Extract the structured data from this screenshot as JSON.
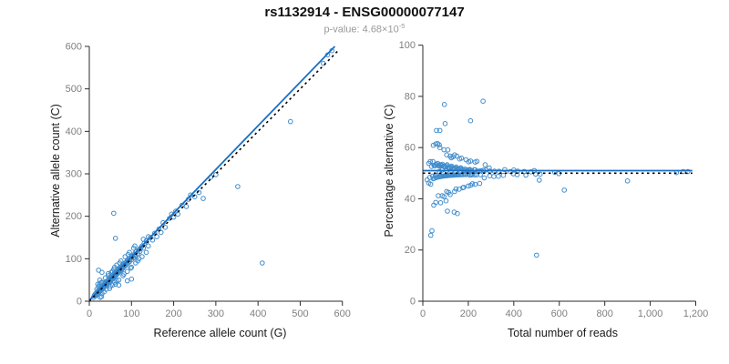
{
  "header": {
    "title": "rs1132914 - ENSG00000077147",
    "pvalue_label": "p-value: ",
    "pvalue_base": "4.68×10",
    "pvalue_exponent": "-5"
  },
  "allele_counts": [
    [
      10,
      9
    ],
    [
      12,
      14
    ],
    [
      14,
      12
    ],
    [
      15,
      18
    ],
    [
      16,
      15
    ],
    [
      18,
      20
    ],
    [
      19,
      16
    ],
    [
      20,
      24
    ],
    [
      22,
      21
    ],
    [
      23,
      26
    ],
    [
      24,
      22
    ],
    [
      25,
      28
    ],
    [
      26,
      24
    ],
    [
      27,
      31
    ],
    [
      28,
      27
    ],
    [
      29,
      33
    ],
    [
      30,
      28
    ],
    [
      30,
      35
    ],
    [
      31,
      30
    ],
    [
      32,
      36
    ],
    [
      33,
      31
    ],
    [
      34,
      38
    ],
    [
      35,
      33
    ],
    [
      35,
      40
    ],
    [
      36,
      37
    ],
    [
      37,
      42
    ],
    [
      38,
      36
    ],
    [
      39,
      44
    ],
    [
      40,
      38
    ],
    [
      40,
      46
    ],
    [
      41,
      43
    ],
    [
      42,
      40
    ],
    [
      43,
      48
    ],
    [
      44,
      42
    ],
    [
      45,
      50
    ],
    [
      46,
      44
    ],
    [
      47,
      52
    ],
    [
      48,
      46
    ],
    [
      49,
      55
    ],
    [
      50,
      48
    ],
    [
      50,
      57
    ],
    [
      51,
      53
    ],
    [
      52,
      50
    ],
    [
      53,
      58
    ],
    [
      54,
      52
    ],
    [
      55,
      60
    ],
    [
      56,
      54
    ],
    [
      57,
      62
    ],
    [
      58,
      56
    ],
    [
      59,
      65
    ],
    [
      60,
      58
    ],
    [
      60,
      67
    ],
    [
      61,
      63
    ],
    [
      62,
      60
    ],
    [
      63,
      68
    ],
    [
      64,
      62
    ],
    [
      65,
      70
    ],
    [
      66,
      64
    ],
    [
      67,
      72
    ],
    [
      68,
      66
    ],
    [
      69,
      75
    ],
    [
      70,
      68
    ],
    [
      70,
      77
    ],
    [
      71,
      73
    ],
    [
      72,
      70
    ],
    [
      73,
      78
    ],
    [
      74,
      72
    ],
    [
      75,
      80
    ],
    [
      76,
      74
    ],
    [
      77,
      82
    ],
    [
      78,
      76
    ],
    [
      79,
      85
    ],
    [
      80,
      78
    ],
    [
      80,
      87
    ],
    [
      82,
      84
    ],
    [
      84,
      82
    ],
    [
      85,
      90
    ],
    [
      86,
      84
    ],
    [
      88,
      92
    ],
    [
      90,
      88
    ],
    [
      90,
      96
    ],
    [
      92,
      96
    ],
    [
      94,
      92
    ],
    [
      95,
      100
    ],
    [
      96,
      94
    ],
    [
      98,
      103
    ],
    [
      100,
      98
    ],
    [
      100,
      106
    ],
    [
      102,
      107
    ],
    [
      105,
      102
    ],
    [
      106,
      110
    ],
    [
      108,
      105
    ],
    [
      110,
      108
    ],
    [
      110,
      116
    ],
    [
      112,
      118
    ],
    [
      115,
      112
    ],
    [
      118,
      122
    ],
    [
      120,
      117
    ],
    [
      122,
      126
    ],
    [
      125,
      130
    ],
    [
      128,
      125
    ],
    [
      130,
      136
    ],
    [
      25,
      40
    ],
    [
      30,
      45
    ],
    [
      35,
      22
    ],
    [
      40,
      28
    ],
    [
      45,
      60
    ],
    [
      50,
      35
    ],
    [
      55,
      70
    ],
    [
      60,
      45
    ],
    [
      65,
      85
    ],
    [
      70,
      50
    ],
    [
      75,
      95
    ],
    [
      80,
      60
    ],
    [
      45,
      65
    ],
    [
      38,
      55
    ],
    [
      28,
      44
    ],
    [
      22,
      35
    ],
    [
      18,
      28
    ],
    [
      60,
      80
    ],
    [
      90,
      70
    ],
    [
      100,
      80
    ],
    [
      110,
      90
    ],
    [
      55,
      38
    ],
    [
      65,
      48
    ],
    [
      85,
      105
    ],
    [
      95,
      115
    ],
    [
      105,
      125
    ],
    [
      115,
      95
    ],
    [
      125,
      105
    ],
    [
      135,
      142
    ],
    [
      140,
      130
    ],
    [
      30,
      18
    ],
    [
      48,
      30
    ],
    [
      52,
      68
    ],
    [
      58,
      75
    ],
    [
      62,
      40
    ],
    [
      72,
      90
    ],
    [
      82,
      64
    ],
    [
      92,
      110
    ],
    [
      98,
      78
    ],
    [
      108,
      130
    ],
    [
      118,
      100
    ],
    [
      128,
      146
    ],
    [
      135,
      115
    ],
    [
      20,
      40
    ],
    [
      25,
      50
    ],
    [
      30,
      68
    ],
    [
      70,
      38
    ],
    [
      90,
      48
    ],
    [
      100,
      52
    ],
    [
      62,
      148
    ],
    [
      22,
      73
    ],
    [
      58,
      207
    ],
    [
      29,
      11
    ],
    [
      26,
      9
    ],
    [
      140,
      152
    ],
    [
      145,
      150
    ],
    [
      150,
      144
    ],
    [
      155,
      160
    ],
    [
      160,
      152
    ],
    [
      165,
      170
    ],
    [
      170,
      162
    ],
    [
      175,
      185
    ],
    [
      180,
      174
    ],
    [
      190,
      195
    ],
    [
      195,
      205
    ],
    [
      200,
      198
    ],
    [
      205,
      212
    ],
    [
      210,
      205
    ],
    [
      220,
      226
    ],
    [
      230,
      223
    ],
    [
      235,
      240
    ],
    [
      240,
      250
    ],
    [
      250,
      246
    ],
    [
      260,
      256
    ],
    [
      270,
      242
    ],
    [
      288,
      292
    ],
    [
      300,
      298
    ],
    [
      352,
      270
    ],
    [
      410,
      90
    ],
    [
      477,
      423
    ],
    [
      555,
      560
    ],
    [
      565,
      580
    ],
    [
      575,
      590
    ]
  ],
  "chart_data": [
    {
      "type": "scatter",
      "title": "",
      "xlabel": "Reference allele count (G)",
      "ylabel": "Alternative allele count (C)",
      "xlim": [
        0,
        620
      ],
      "ylim": [
        0,
        615
      ],
      "xtick_values": [
        0,
        100,
        200,
        300,
        400,
        500,
        600
      ],
      "xtick_labels": [
        "0",
        "100",
        "200",
        "300",
        "400",
        "500",
        "600"
      ],
      "ytick_values": [
        0,
        100,
        200,
        300,
        400,
        500,
        600
      ],
      "ytick_labels": [
        "0",
        "100",
        "200",
        "300",
        "400",
        "500",
        "600"
      ],
      "points_mode": "ref_alt",
      "points_note": "points are [reference allele count, alternative allele count] from allele_counts",
      "point_color": "#3f8ccc",
      "point_radius": 2.3,
      "grid": false,
      "legend": "none",
      "lines": [
        {
          "name": "fit-line",
          "style": "solid",
          "color": "#1a6fc4",
          "width": 1.8,
          "x1": 0,
          "y1": 2,
          "x2": 582,
          "y2": 600
        },
        {
          "name": "identity-line",
          "style": "dotted",
          "color": "#000000",
          "width": 1.6,
          "x1": 0,
          "y1": 0,
          "x2": 592,
          "y2": 592
        }
      ]
    },
    {
      "type": "scatter",
      "title": "",
      "xlabel": "Total number of reads",
      "ylabel": "Percentage alternative (C)",
      "xlim": [
        0,
        1230
      ],
      "ylim": [
        0,
        102
      ],
      "xtick_values": [
        0,
        200,
        400,
        600,
        800,
        1000,
        1200
      ],
      "xtick_labels": [
        "0",
        "200",
        "400",
        "600",
        "800",
        "1,000",
        "1,200"
      ],
      "ytick_values": [
        0,
        20,
        40,
        60,
        80,
        100
      ],
      "ytick_labels": [
        "0",
        "20",
        "40",
        "60",
        "80",
        "100"
      ],
      "points_mode": "total_pct",
      "points_note": "points derived from allele_counts as [ref+alt, 100*alt/(ref+alt)]",
      "point_color": "#3f8ccc",
      "point_radius": 2.3,
      "grid": false,
      "legend": "none",
      "lines": [
        {
          "name": "mean-line",
          "style": "solid",
          "color": "#1a6fc4",
          "width": 1.8,
          "x1": 0,
          "y1": 51,
          "x2": 1185,
          "y2": 51
        },
        {
          "name": "null-line",
          "style": "dotted",
          "color": "#000000",
          "width": 1.6,
          "x1": 0,
          "y1": 50,
          "x2": 1185,
          "y2": 50
        }
      ]
    }
  ]
}
